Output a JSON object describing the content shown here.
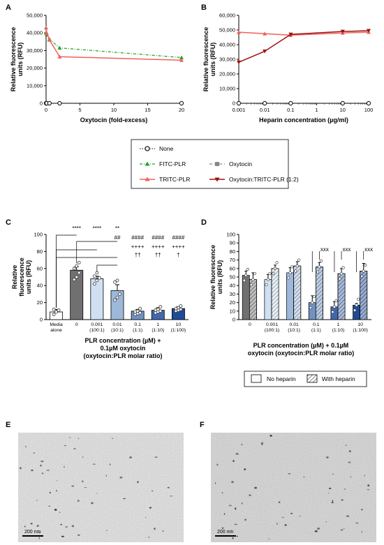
{
  "panels": {
    "A": "A",
    "B": "B",
    "C": "C",
    "D": "D",
    "E": "E",
    "F": "F"
  },
  "colors": {
    "none": "#333333",
    "fitc": "#2aa02a",
    "oxytocin": "#888888",
    "tritc": "#f0605c",
    "complex": "#a01010",
    "bar_media": "#ffffff",
    "bar_0": "#707070",
    "bar_100": "#cfe0f2",
    "bar_10": "#9db8d8",
    "bar_1": "#6f92c3",
    "bar_01": "#4168ad",
    "bar_001": "#1f4a96"
  },
  "chart_data": [
    {
      "id": "A",
      "type": "line",
      "xlabel": "Oxytocin (fold-excess)",
      "ylabel": [
        "Relative fluorescence",
        "units (RFU)"
      ],
      "xlim": [
        0,
        20
      ],
      "ylim": [
        0,
        50000
      ],
      "xticks": [
        0,
        5,
        10,
        15,
        20
      ],
      "yticks": [
        0,
        10000,
        20000,
        30000,
        40000,
        50000
      ],
      "yticklabels": [
        "0",
        "10,000",
        "20,000",
        "30,000",
        "40,000",
        "50,000"
      ],
      "series": [
        {
          "key": "none",
          "x": [
            0,
            0.1,
            0.5,
            2,
            20
          ],
          "y": [
            0,
            0,
            0,
            0,
            0
          ]
        },
        {
          "key": "fitc",
          "x": [
            0,
            0.1,
            0.5,
            2,
            20
          ],
          "y": [
            40000,
            39000,
            36500,
            31500,
            26000
          ]
        },
        {
          "key": "tritc",
          "x": [
            0,
            0.1,
            0.5,
            2,
            20
          ],
          "y": [
            43000,
            40000,
            36000,
            26500,
            24500
          ]
        }
      ]
    },
    {
      "id": "B",
      "type": "line",
      "xlabel": "Heparin concentration (µg/ml)",
      "ylabel": [
        "Relative fluorescence",
        "units (RFU)"
      ],
      "xscale": "log",
      "xlim": [
        0.001,
        100
      ],
      "ylim": [
        0,
        60000
      ],
      "xticks": [
        0.001,
        0.01,
        0.1,
        1,
        10,
        100
      ],
      "xticklabels": [
        "0.001",
        "0.01",
        "0.1",
        "1",
        "10",
        "100"
      ],
      "yticks": [
        0,
        10000,
        20000,
        30000,
        40000,
        50000,
        60000
      ],
      "yticklabels": [
        "0",
        "10,000",
        "20,000",
        "30,000",
        "40,000",
        "50,000",
        "60,000"
      ],
      "series": [
        {
          "key": "none",
          "x": [
            0.001,
            0.01,
            0.1,
            10,
            100
          ],
          "y": [
            0,
            0,
            0,
            0,
            0
          ]
        },
        {
          "key": "tritc",
          "x": [
            0.001,
            0.01,
            0.1,
            10,
            100
          ],
          "y": [
            48500,
            47500,
            46500,
            48000,
            48500
          ]
        },
        {
          "key": "complex",
          "x": [
            0.001,
            0.01,
            0.1,
            10,
            100
          ],
          "y": [
            28000,
            35500,
            47000,
            49000,
            49500
          ]
        }
      ]
    },
    {
      "id": "C",
      "type": "bar",
      "xlabel": [
        "PLR concentration (µM) +",
        "0.1µM oxytocin",
        "(oxytocin:PLR molar ratio)"
      ],
      "ylabel": [
        "Relative",
        "fluorescence",
        "units (RFU)"
      ],
      "ylim": [
        0,
        100
      ],
      "yticks": [
        0,
        20,
        40,
        60,
        80,
        100
      ],
      "categories": [
        {
          "l1": "Media",
          "l2": "alone",
          "color": "bar_media"
        },
        {
          "l1": "0",
          "l2": "",
          "color": "bar_0"
        },
        {
          "l1": "0.001",
          "l2": "(100:1)",
          "color": "bar_100"
        },
        {
          "l1": "0.01",
          "l2": "(10:1)",
          "color": "bar_10"
        },
        {
          "l1": "0.1",
          "l2": "(1:1)",
          "color": "bar_1"
        },
        {
          "l1": "1",
          "l2": "(1:10)",
          "color": "bar_01"
        },
        {
          "l1": "10",
          "l2": "(1:100)",
          "color": "bar_001"
        }
      ],
      "values": [
        9,
        58,
        48,
        34,
        10,
        11,
        13
      ],
      "errors": [
        3,
        4,
        3,
        7,
        2,
        3,
        2
      ],
      "points": [
        [
          6,
          9,
          11,
          12
        ],
        [
          47,
          50,
          55,
          60,
          63,
          67
        ],
        [
          42,
          46,
          49,
          51,
          55
        ],
        [
          23,
          26,
          30,
          44,
          46
        ],
        [
          6,
          7,
          8,
          9,
          10,
          13
        ],
        [
          8,
          9,
          10,
          11,
          12,
          15
        ],
        [
          10,
          11,
          12,
          13,
          14,
          16
        ]
      ],
      "sig": {
        "row1": [
          "****",
          "****",
          "**"
        ],
        "row2": [
          "##",
          "####",
          "####",
          "####"
        ],
        "row3": [
          "++++",
          "++++",
          "++++"
        ],
        "row4": [
          "††",
          "††",
          "†"
        ]
      }
    },
    {
      "id": "D",
      "type": "bar",
      "xlabel": [
        "PLR concentration (µM) + 0.1µM",
        "oxytocin (oxytocin:PLR molar ratio)"
      ],
      "ylabel": [
        "Relative fluorescence",
        "units (RFU)"
      ],
      "ylim": [
        0,
        100
      ],
      "yticks": [
        0,
        10,
        20,
        30,
        40,
        50,
        60,
        70,
        80,
        90,
        100
      ],
      "categories": [
        {
          "l1": "0",
          "l2": "",
          "color": "bar_0"
        },
        {
          "l1": "0.001",
          "l2": "(100:1)",
          "color": "bar_100"
        },
        {
          "l1": "0.01",
          "l2": "(10:1)",
          "color": "bar_10"
        },
        {
          "l1": "0.1",
          "l2": "(1:1)",
          "color": "bar_1"
        },
        {
          "l1": "1",
          "l2": "(1:10)",
          "color": "bar_01"
        },
        {
          "l1": "10",
          "l2": "(1:100)",
          "color": "bar_001"
        }
      ],
      "series": [
        {
          "name": "No heparin",
          "values": [
            52,
            47,
            55,
            20,
            15,
            17
          ],
          "errors": [
            5,
            6,
            6,
            8,
            6,
            2
          ]
        },
        {
          "name": "With heparin",
          "values": [
            47,
            60,
            63,
            62,
            54,
            57
          ],
          "errors": [
            8,
            4,
            5,
            5,
            6,
            9
          ]
        }
      ],
      "sig": [
        "xxx",
        "xxx",
        "xxx"
      ]
    }
  ],
  "legend_AB": {
    "none": "None",
    "fitc": "FITC-PLR",
    "oxytocin": "Oxytocin",
    "tritc": "TRITC-PLR",
    "complex": "Oxytocin:TRITC-PLR (1:2)"
  },
  "legend_D": {
    "no_heparin": "No heparin",
    "with_heparin": "With heparin"
  },
  "micrographs": {
    "E": {
      "scale": "200 nm"
    },
    "F": {
      "scale": "200 nm"
    }
  }
}
